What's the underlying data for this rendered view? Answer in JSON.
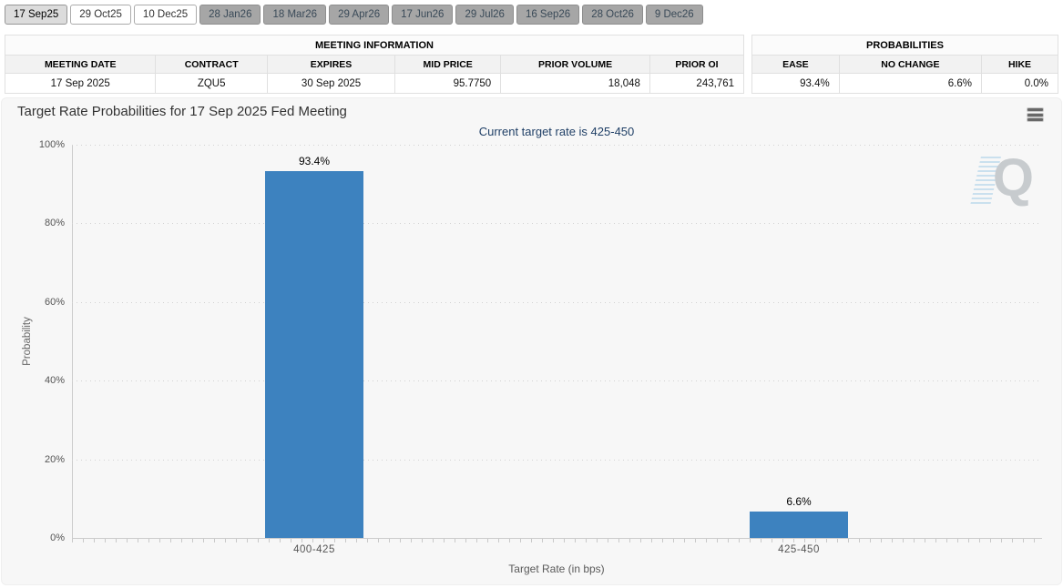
{
  "tabs": {
    "items": [
      {
        "label": "17 Sep25",
        "state": "selected"
      },
      {
        "label": "29 Oct25",
        "state": "normal"
      },
      {
        "label": "10 Dec25",
        "state": "normal"
      },
      {
        "label": "28 Jan26",
        "state": "disabled"
      },
      {
        "label": "18 Mar26",
        "state": "disabled"
      },
      {
        "label": "29 Apr26",
        "state": "disabled"
      },
      {
        "label": "17 Jun26",
        "state": "disabled"
      },
      {
        "label": "29 Jul26",
        "state": "disabled"
      },
      {
        "label": "16 Sep26",
        "state": "disabled"
      },
      {
        "label": "28 Oct26",
        "state": "disabled"
      },
      {
        "label": "9 Dec26",
        "state": "disabled"
      }
    ]
  },
  "meeting_info": {
    "title": "MEETING INFORMATION",
    "columns": [
      "MEETING DATE",
      "CONTRACT",
      "EXPIRES",
      "MID PRICE",
      "PRIOR VOLUME",
      "PRIOR OI"
    ],
    "row": [
      "17 Sep 2025",
      "ZQU5",
      "30 Sep 2025",
      "95.7750",
      "18,048",
      "243,761"
    ]
  },
  "probabilities": {
    "title": "PROBABILITIES",
    "columns": [
      "EASE",
      "NO CHANGE",
      "HIKE"
    ],
    "row": [
      "93.4%",
      "6.6%",
      "0.0%"
    ]
  },
  "chart_data": {
    "type": "bar",
    "title": "Target Rate Probabilities for 17 Sep 2025 Fed Meeting",
    "subtitle": "Current target rate is 425-450",
    "categories": [
      "400-425",
      "425-450"
    ],
    "values": [
      93.4,
      6.6
    ],
    "value_labels": [
      "93.4%",
      "6.6%"
    ],
    "xlabel": "Target Rate (in bps)",
    "ylabel": "Probability",
    "ylim": [
      0,
      100
    ],
    "ytick_step": 20,
    "ytick_suffix": "%",
    "grid": "dotted-horizontal",
    "legend": "none",
    "bar_color": "#3d82bf"
  },
  "icons": {
    "menu": "hamburger-icon",
    "watermark_letter": "Q"
  },
  "colors": {
    "bar": "#3d82bf",
    "subtitle_text": "#1f3f66",
    "card_background": "#f7f7f7",
    "disabled_tab_background": "#a6a6a6"
  }
}
